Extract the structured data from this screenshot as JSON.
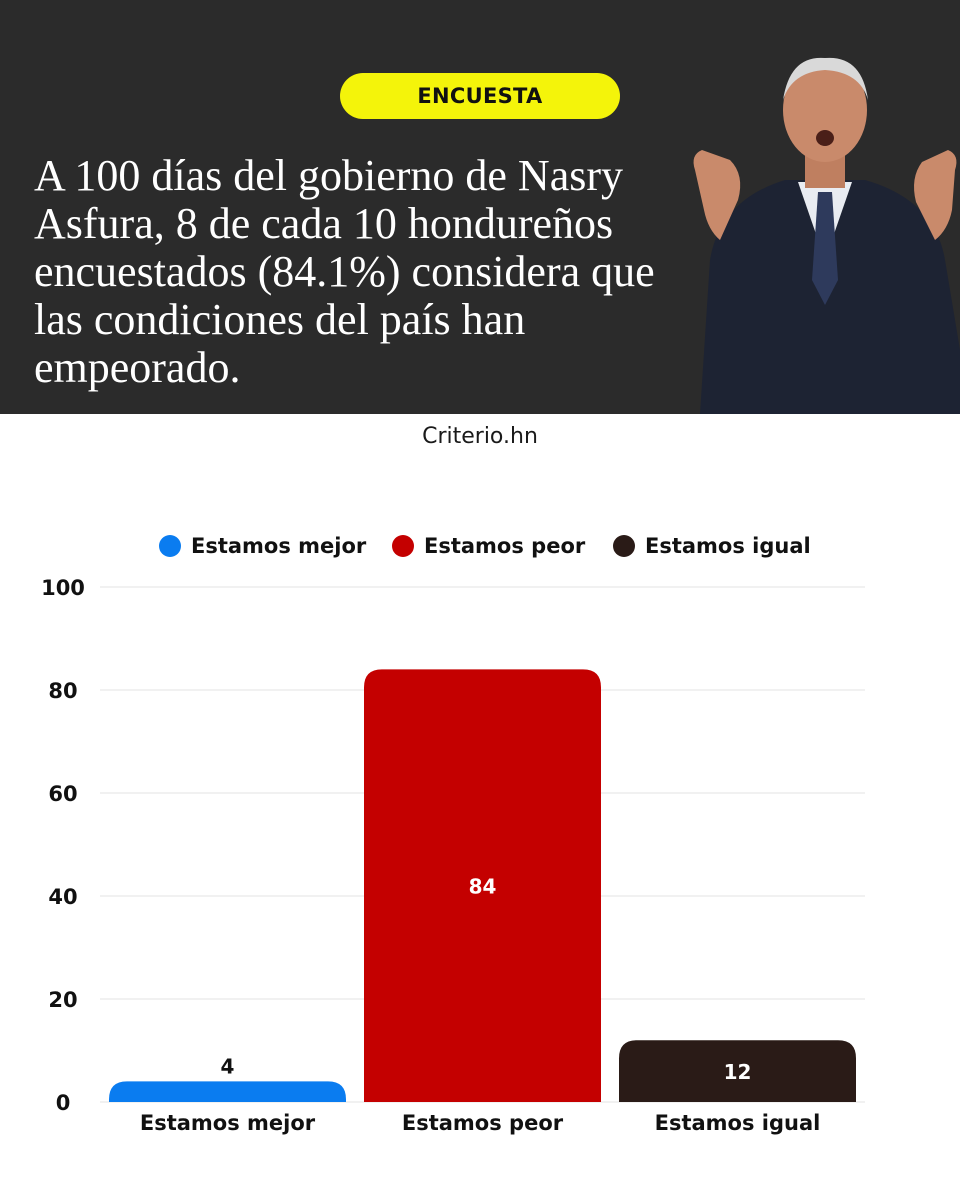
{
  "badge": "ENCUESTA",
  "headline": "A 100 días del gobierno de Nasry Asfura, 8 de cada 10 hondureños encuestados (84.1%) considera que las condiciones del país han empeorado.",
  "source": "Criterio.hn",
  "colors": {
    "header_bg": "#2b2b2b",
    "badge_bg": "#f4f40a",
    "mejor": "#0a7cf0",
    "peor": "#c40000",
    "igual": "#2a1b17"
  },
  "chart_data": {
    "type": "bar",
    "title": "",
    "xlabel": "",
    "ylabel": "",
    "categories": [
      "Estamos mejor",
      "Estamos peor",
      "Estamos igual"
    ],
    "values": [
      4,
      84,
      12
    ],
    "data_labels": [
      "4",
      "84",
      "12"
    ],
    "colors": [
      "#0a7cf0",
      "#c40000",
      "#2a1b17"
    ],
    "ylim": [
      0,
      100
    ],
    "yticks": [
      0,
      20,
      40,
      60,
      80,
      100
    ],
    "grid": true,
    "legend": {
      "placement": "top-center",
      "entries": [
        "Estamos mejor",
        "Estamos peor",
        "Estamos igual"
      ]
    }
  }
}
